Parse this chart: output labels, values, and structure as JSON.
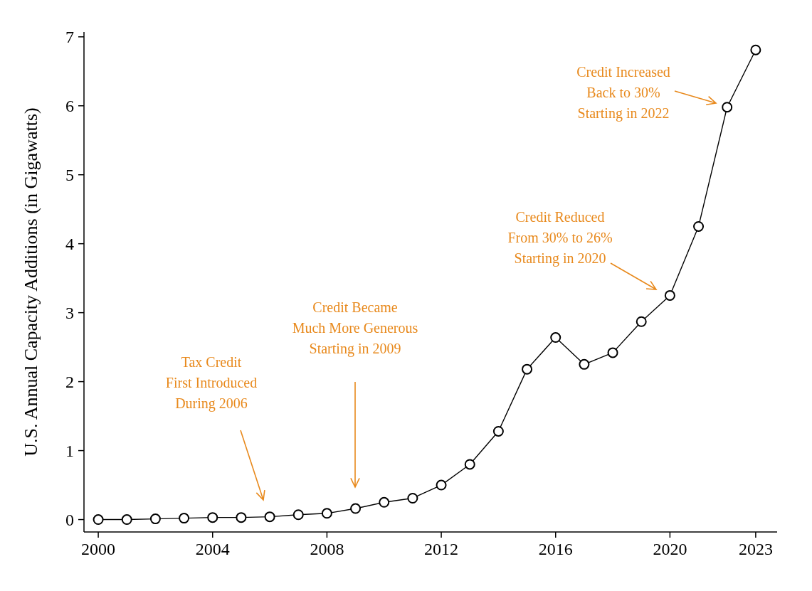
{
  "chart_data": {
    "type": "line",
    "ylabel": "U.S. Annual Capacity Additions (in Gigawatts)",
    "x": [
      2000,
      2001,
      2002,
      2003,
      2004,
      2005,
      2006,
      2007,
      2008,
      2009,
      2010,
      2011,
      2012,
      2013,
      2014,
      2015,
      2016,
      2017,
      2018,
      2019,
      2020,
      2021,
      2022,
      2023
    ],
    "series": [
      {
        "color": "#000000",
        "values": [
          0,
          0,
          0.01,
          0.02,
          0.03,
          0.03,
          0.04,
          0.07,
          0.09,
          0.16,
          0.25,
          0.31,
          0.5,
          0.8,
          1.28,
          2.18,
          2.64,
          2.25,
          2.42,
          2.87,
          3.25,
          4.25,
          5.98,
          6.81
        ]
      }
    ],
    "xlim": [
      1999.5,
      2023.75
    ],
    "xticks": [
      2000,
      2004,
      2008,
      2012,
      2016,
      2020,
      2023
    ],
    "ylim": [
      -0.18,
      7.07
    ],
    "yticks": [
      0,
      1,
      2,
      3,
      4,
      5,
      6,
      7
    ],
    "marker": "circle",
    "line_style": "solid",
    "grid": false,
    "annotations": [
      "Tax Credit\nFirst Introduced\nDuring 2006",
      "Credit Became\nMuch More Generous\nStarting in 2009",
      "Credit Reduced\nFrom 30% to 26%\nStarting in 2020",
      "Credit Increased\nBack to 30%\nStarting in 2022"
    ]
  }
}
